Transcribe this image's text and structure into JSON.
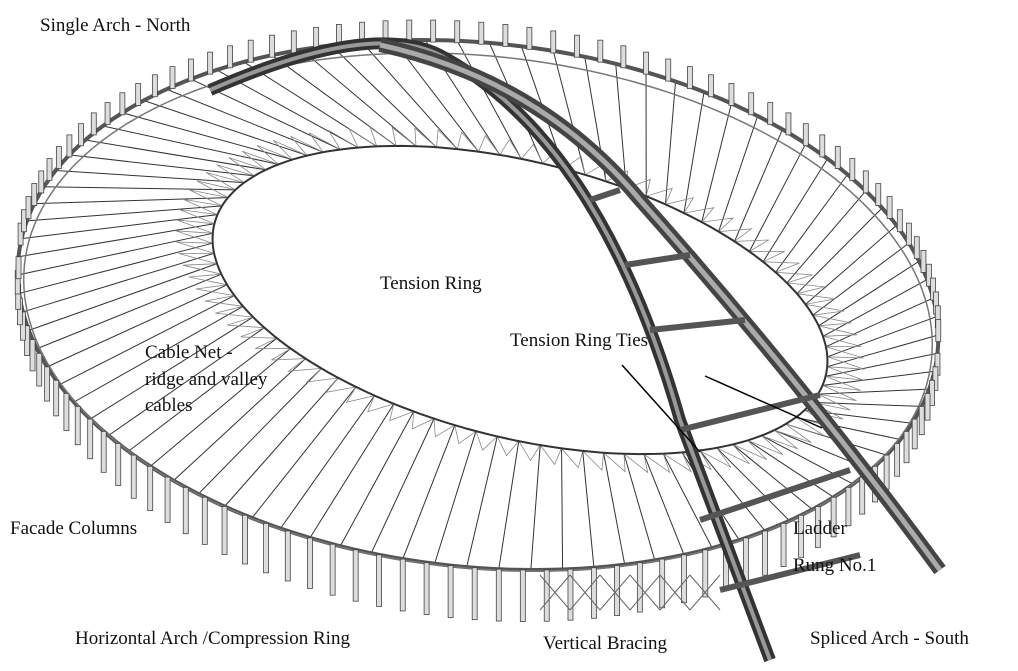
{
  "labels": {
    "single_arch_north": "Single Arch - North",
    "tension_ring": "Tension Ring",
    "tension_ring_ties": "Tension Ring Ties",
    "cable_net": [
      "Cable Net -",
      "ridge and valley",
      "cables"
    ],
    "facade_columns": "Facade Columns",
    "ladder_rung": [
      "Ladder",
      "Rung No.1"
    ],
    "horizontal_arch": "Horizontal Arch /Compression Ring",
    "vertical_bracing": "Vertical Bracing",
    "spliced_arch_south": "Spliced Arch - South"
  }
}
